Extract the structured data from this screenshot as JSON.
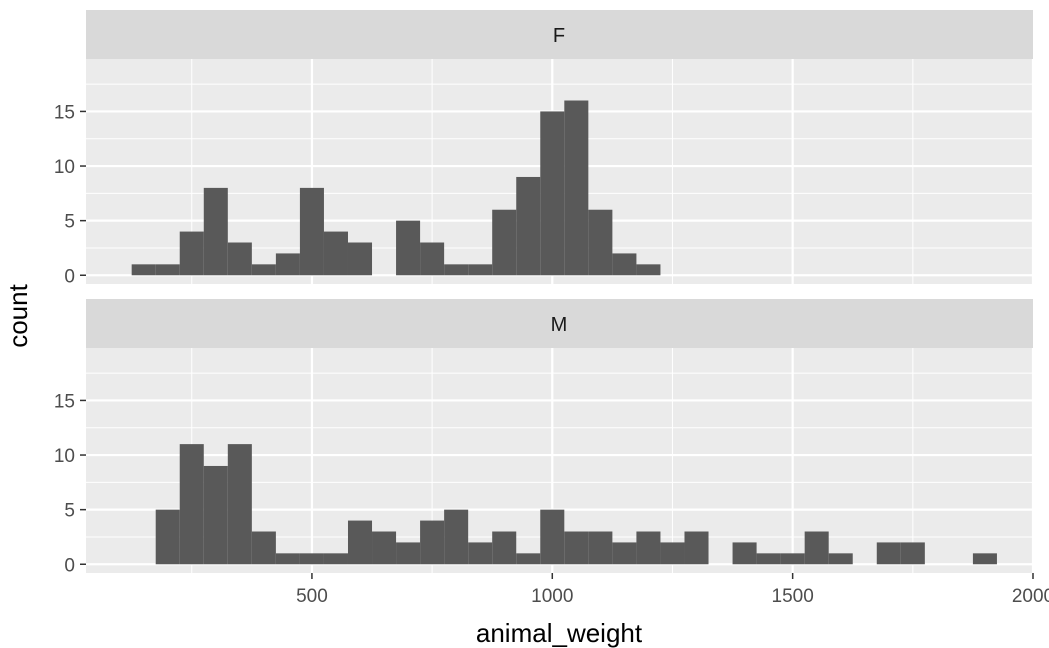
{
  "chart_data": {
    "type": "bar",
    "subtype": "faceted histogram",
    "xlabel": "animal_weight",
    "ylabel": "count",
    "xlim": [
      30,
      2000
    ],
    "ylim": [
      -0.8,
      19.8
    ],
    "x_ticks": [
      500,
      1000,
      1500,
      2000
    ],
    "y_ticks": [
      0,
      5,
      10,
      15
    ],
    "bin_width": 50,
    "grid": true,
    "bar_color": "#595959",
    "panel_background": "#ebebeb",
    "strip_background": "#d9d9d9",
    "panels": [
      {
        "label": "F",
        "bins": [
          {
            "x": 150,
            "count": 1
          },
          {
            "x": 200,
            "count": 1
          },
          {
            "x": 250,
            "count": 4
          },
          {
            "x": 300,
            "count": 8
          },
          {
            "x": 350,
            "count": 3
          },
          {
            "x": 400,
            "count": 1
          },
          {
            "x": 450,
            "count": 2
          },
          {
            "x": 500,
            "count": 8
          },
          {
            "x": 550,
            "count": 4
          },
          {
            "x": 600,
            "count": 3
          },
          {
            "x": 700,
            "count": 5
          },
          {
            "x": 750,
            "count": 3
          },
          {
            "x": 800,
            "count": 1
          },
          {
            "x": 850,
            "count": 1
          },
          {
            "x": 900,
            "count": 6
          },
          {
            "x": 950,
            "count": 9
          },
          {
            "x": 1000,
            "count": 15
          },
          {
            "x": 1050,
            "count": 16
          },
          {
            "x": 1100,
            "count": 6
          },
          {
            "x": 1150,
            "count": 2
          },
          {
            "x": 1200,
            "count": 1
          }
        ]
      },
      {
        "label": "M",
        "bins": [
          {
            "x": 200,
            "count": 5
          },
          {
            "x": 250,
            "count": 11
          },
          {
            "x": 300,
            "count": 9
          },
          {
            "x": 350,
            "count": 11
          },
          {
            "x": 400,
            "count": 3
          },
          {
            "x": 450,
            "count": 1
          },
          {
            "x": 500,
            "count": 1
          },
          {
            "x": 550,
            "count": 1
          },
          {
            "x": 600,
            "count": 4
          },
          {
            "x": 650,
            "count": 3
          },
          {
            "x": 700,
            "count": 2
          },
          {
            "x": 750,
            "count": 4
          },
          {
            "x": 800,
            "count": 5
          },
          {
            "x": 850,
            "count": 2
          },
          {
            "x": 900,
            "count": 3
          },
          {
            "x": 950,
            "count": 1
          },
          {
            "x": 1000,
            "count": 5
          },
          {
            "x": 1050,
            "count": 3
          },
          {
            "x": 1100,
            "count": 3
          },
          {
            "x": 1150,
            "count": 2
          },
          {
            "x": 1200,
            "count": 3
          },
          {
            "x": 1250,
            "count": 2
          },
          {
            "x": 1300,
            "count": 3
          },
          {
            "x": 1400,
            "count": 2
          },
          {
            "x": 1450,
            "count": 1
          },
          {
            "x": 1500,
            "count": 1
          },
          {
            "x": 1550,
            "count": 3
          },
          {
            "x": 1600,
            "count": 1
          },
          {
            "x": 1700,
            "count": 2
          },
          {
            "x": 1750,
            "count": 2
          },
          {
            "x": 1900,
            "count": 1
          }
        ]
      }
    ]
  }
}
